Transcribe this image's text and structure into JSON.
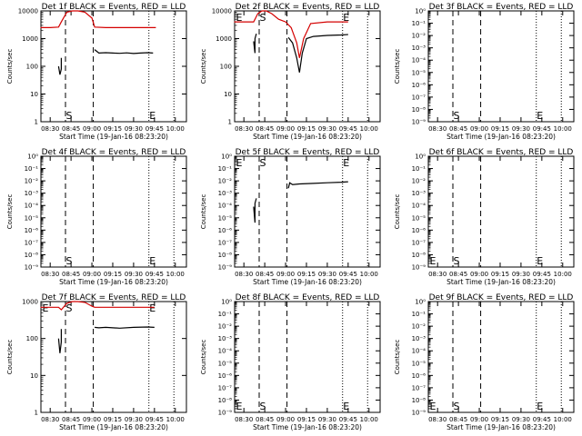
{
  "colors": {
    "events": "#000000",
    "lld": "#d40000",
    "axes": "#000000"
  },
  "chart_data": [
    {
      "type": "line",
      "title": "Det 1f BLACK = Events, RED = LLD",
      "xlabel": "Start Time (19-Jan-16 08:23:20)",
      "ylabel": "Counts/sec",
      "log_y": true,
      "ylim": [
        1,
        10000
      ],
      "xlim": [
        "08:23:20",
        "10:00"
      ],
      "x_ticks": [
        "08:30",
        "08:45",
        "09:00",
        "09:15",
        "09:30",
        "09:45",
        "10:00"
      ],
      "y_ticks": [
        "1",
        "10",
        "100",
        "1000",
        "10000"
      ],
      "markers": [
        "S",
        "E"
      ],
      "series": [
        {
          "name": "BLACK = Events",
          "color": "#000000",
          "x": [
            "08:36",
            "08:37",
            "08:38",
            "08:38"
          ],
          "y": [
            100,
            50,
            80,
            200
          ]
        },
        {
          "name": "BLACK = Events",
          "color": "#000000",
          "x": [
            "09:02",
            "09:05",
            "09:10",
            "09:15",
            "09:20",
            "09:25",
            "09:30",
            "09:35",
            "09:40",
            "09:44"
          ],
          "y": [
            400,
            300,
            310,
            300,
            295,
            305,
            290,
            300,
            310,
            300
          ]
        },
        {
          "name": "RED = LLD",
          "color": "#d40000",
          "x": [
            "08:23",
            "08:30",
            "08:36",
            "08:38",
            "08:42",
            "08:46",
            "08:50",
            "08:55",
            "09:00",
            "09:02",
            "09:10",
            "09:30",
            "09:45",
            "09:46"
          ],
          "y": [
            2500,
            2500,
            2600,
            4000,
            9000,
            10000,
            10000,
            9000,
            5500,
            2600,
            2500,
            2500,
            2500,
            2500
          ]
        }
      ]
    },
    {
      "type": "line",
      "title": "Det 2f BLACK = Events, RED = LLD",
      "xlabel": "Start Time (19-Jan-16 08:23:20)",
      "ylabel": "Counts/sec",
      "log_y": true,
      "ylim": [
        1,
        10000
      ],
      "xlim": [
        "08:23:20",
        "10:00"
      ],
      "x_ticks": [
        "08:30",
        "08:45",
        "09:00",
        "09:15",
        "09:30",
        "09:45",
        "10:00"
      ],
      "y_ticks": [
        "1",
        "10",
        "100",
        "1000",
        "10000"
      ],
      "markers": [
        "E",
        "S",
        "E"
      ],
      "series": [
        {
          "name": "BLACK = Events",
          "color": "#000000",
          "x": [
            "08:37",
            "08:38",
            "08:38",
            "08:39"
          ],
          "y": [
            800,
            300,
            1000,
            1500
          ]
        },
        {
          "name": "BLACK = Events",
          "color": "#000000",
          "x": [
            "09:02",
            "09:05",
            "09:08",
            "09:10",
            "09:12",
            "09:15",
            "09:20",
            "09:30",
            "09:40",
            "09:45"
          ],
          "y": [
            1100,
            700,
            200,
            60,
            300,
            1000,
            1200,
            1300,
            1350,
            1400
          ]
        },
        {
          "name": "RED = LLD",
          "color": "#d40000",
          "x": [
            "08:23",
            "08:37",
            "08:40",
            "08:43",
            "08:46",
            "08:50",
            "08:55",
            "09:00",
            "09:04",
            "09:08",
            "09:10",
            "09:13",
            "09:18",
            "09:30",
            "09:45"
          ],
          "y": [
            4000,
            4000,
            8000,
            10000,
            10000,
            8000,
            5000,
            4000,
            2500,
            700,
            200,
            1000,
            3500,
            4000,
            4000
          ]
        }
      ]
    },
    {
      "type": "line",
      "title": "Det 3f BLACK = Events, RED = LLD",
      "xlabel": "Start Time (19-Jan-16 08:23:20)",
      "ylabel": "Counts/sec",
      "log_y": true,
      "ylim": [
        1,
        10000
      ],
      "xlim": [
        "08:23:20",
        "10:00"
      ],
      "x_ticks": [
        "08:30",
        "08:45",
        "09:00",
        "09:15",
        "09:30",
        "09:45",
        "10:00"
      ],
      "y_ticks": [
        "10⁻⁹",
        "10⁻⁸",
        "10⁻⁷",
        "10⁻⁶",
        "10⁻⁵",
        "10⁻⁴",
        "10⁻³",
        "10⁻²",
        "10⁻¹",
        "10⁰"
      ],
      "markers": [
        "S",
        "E"
      ],
      "series": []
    },
    {
      "type": "line",
      "title": "Det 4f BLACK = Events, RED = LLD",
      "xlabel": "Start Time (19-Jan-16 08:23:20)",
      "ylabel": "Counts/sec",
      "log_y": true,
      "ylim": [
        1,
        10000
      ],
      "xlim": [
        "08:23:20",
        "10:00"
      ],
      "x_ticks": [
        "08:30",
        "08:45",
        "09:00",
        "09:15",
        "09:30",
        "09:45",
        "10:00"
      ],
      "y_ticks": [
        "10⁻⁹",
        "10⁻⁸",
        "10⁻⁷",
        "10⁻⁶",
        "10⁻⁵",
        "10⁻⁴",
        "10⁻³",
        "10⁻²",
        "10⁻¹",
        "10⁰"
      ],
      "markers": [
        "S",
        "E"
      ],
      "series": []
    },
    {
      "type": "line",
      "title": "Det 5f BLACK = Events, RED = LLD",
      "xlabel": "Start Time (19-Jan-16 08:23:20)",
      "ylabel": "Counts/sec",
      "log_y": true,
      "ylim": [
        1,
        10000
      ],
      "xlim": [
        "08:23:20",
        "10:00"
      ],
      "x_ticks": [
        "08:30",
        "08:45",
        "09:00",
        "09:15",
        "09:30",
        "09:45",
        "10:00"
      ],
      "y_ticks": [
        "10⁻⁹",
        "10⁻⁸",
        "10⁻⁷",
        "10⁻⁶",
        "10⁻⁵",
        "10⁻⁴",
        "10⁻³",
        "10⁻²",
        "10⁻¹",
        "10⁰"
      ],
      "markers": [
        "E",
        "S",
        "E"
      ],
      "series": [
        {
          "name": "BLACK = Events",
          "color": "#000000",
          "x": [
            "08:37",
            "08:38",
            "08:38",
            "08:39"
          ],
          "y": [
            150,
            40,
            200,
            300
          ]
        },
        {
          "name": "BLACK = Events",
          "color": "#000000",
          "x": [
            "09:02",
            "09:03",
            "09:05",
            "09:10",
            "09:20",
            "09:30",
            "09:40",
            "09:45"
          ],
          "y": [
            700,
            1100,
            950,
            1000,
            1050,
            1100,
            1150,
            1200
          ]
        }
      ]
    },
    {
      "type": "line",
      "title": "Det 6f BLACK = Events, RED = LLD",
      "xlabel": "Start Time (19-Jan-16 08:23:20)",
      "ylabel": "Counts/sec",
      "log_y": true,
      "ylim": [
        1,
        10000
      ],
      "xlim": [
        "08:23:20",
        "10:00"
      ],
      "x_ticks": [
        "08:30",
        "08:45",
        "09:00",
        "09:15",
        "09:30",
        "09:45",
        "10:00"
      ],
      "y_ticks": [
        "10⁻⁹",
        "10⁻⁸",
        "10⁻⁷",
        "10⁻⁶",
        "10⁻⁵",
        "10⁻⁴",
        "10⁻³",
        "10⁻²",
        "10⁻¹",
        "10⁰"
      ],
      "markers": [
        "E",
        "S",
        "E"
      ],
      "series": []
    },
    {
      "type": "line",
      "title": "Det 7f BLACK = Events, RED = LLD",
      "xlabel": "Start Time (19-Jan-16 08:23:20)",
      "ylabel": "Counts/sec",
      "log_y": true,
      "ylim": [
        1,
        1000
      ],
      "xlim": [
        "08:23:20",
        "10:00"
      ],
      "x_ticks": [
        "08:30",
        "08:45",
        "09:00",
        "09:15",
        "09:30",
        "09:45",
        "10:00"
      ],
      "y_ticks": [
        "1",
        "10",
        "100",
        "1000"
      ],
      "markers": [
        "E",
        "S",
        "E"
      ],
      "series": [
        {
          "name": "BLACK = Events",
          "color": "#000000",
          "x": [
            "08:36",
            "08:37",
            "08:38",
            "08:38"
          ],
          "y": [
            100,
            40,
            80,
            180
          ]
        },
        {
          "name": "BLACK = Events",
          "color": "#000000",
          "x": [
            "09:02",
            "09:05",
            "09:10",
            "09:20",
            "09:30",
            "09:40",
            "09:45"
          ],
          "y": [
            200,
            195,
            200,
            190,
            200,
            205,
            200
          ]
        },
        {
          "name": "RED = LLD",
          "color": "#d40000",
          "x": [
            "08:23",
            "08:36",
            "08:38",
            "08:42",
            "08:46",
            "08:50",
            "08:55",
            "09:00",
            "09:02",
            "09:10",
            "09:30",
            "09:45"
          ],
          "y": [
            700,
            700,
            600,
            900,
            1000,
            1000,
            950,
            750,
            700,
            700,
            700,
            700
          ]
        }
      ]
    },
    {
      "type": "line",
      "title": "Det 8f BLACK = Events, RED = LLD",
      "xlabel": "Start Time (19-Jan-16 08:23:20)",
      "ylabel": "Counts/sec",
      "log_y": true,
      "ylim": [
        1,
        10000
      ],
      "xlim": [
        "08:23:20",
        "10:00"
      ],
      "x_ticks": [
        "08:30",
        "08:45",
        "09:00",
        "09:15",
        "09:30",
        "09:45",
        "10:00"
      ],
      "y_ticks": [
        "10⁻⁹",
        "10⁻⁸",
        "10⁻⁷",
        "10⁻⁶",
        "10⁻⁵",
        "10⁻⁴",
        "10⁻³",
        "10⁻²",
        "10⁻¹",
        "10⁰"
      ],
      "markers": [
        "E",
        "S",
        "E"
      ],
      "series": []
    },
    {
      "type": "line",
      "title": "Det 9f BLACK = Events, RED = LLD",
      "xlabel": "Start Time (19-Jan-16 08:23:20)",
      "ylabel": "Counts/sec",
      "log_y": true,
      "ylim": [
        1,
        10000
      ],
      "xlim": [
        "08:23:20",
        "10:00"
      ],
      "x_ticks": [
        "08:30",
        "08:45",
        "09:00",
        "09:15",
        "09:30",
        "09:45",
        "10:00"
      ],
      "y_ticks": [
        "10⁻⁹",
        "10⁻⁸",
        "10⁻⁷",
        "10⁻⁶",
        "10⁻⁵",
        "10⁻⁴",
        "10⁻³",
        "10⁻²",
        "10⁻¹",
        "10⁰"
      ],
      "markers": [
        "E",
        "S",
        "E"
      ],
      "series": []
    }
  ]
}
